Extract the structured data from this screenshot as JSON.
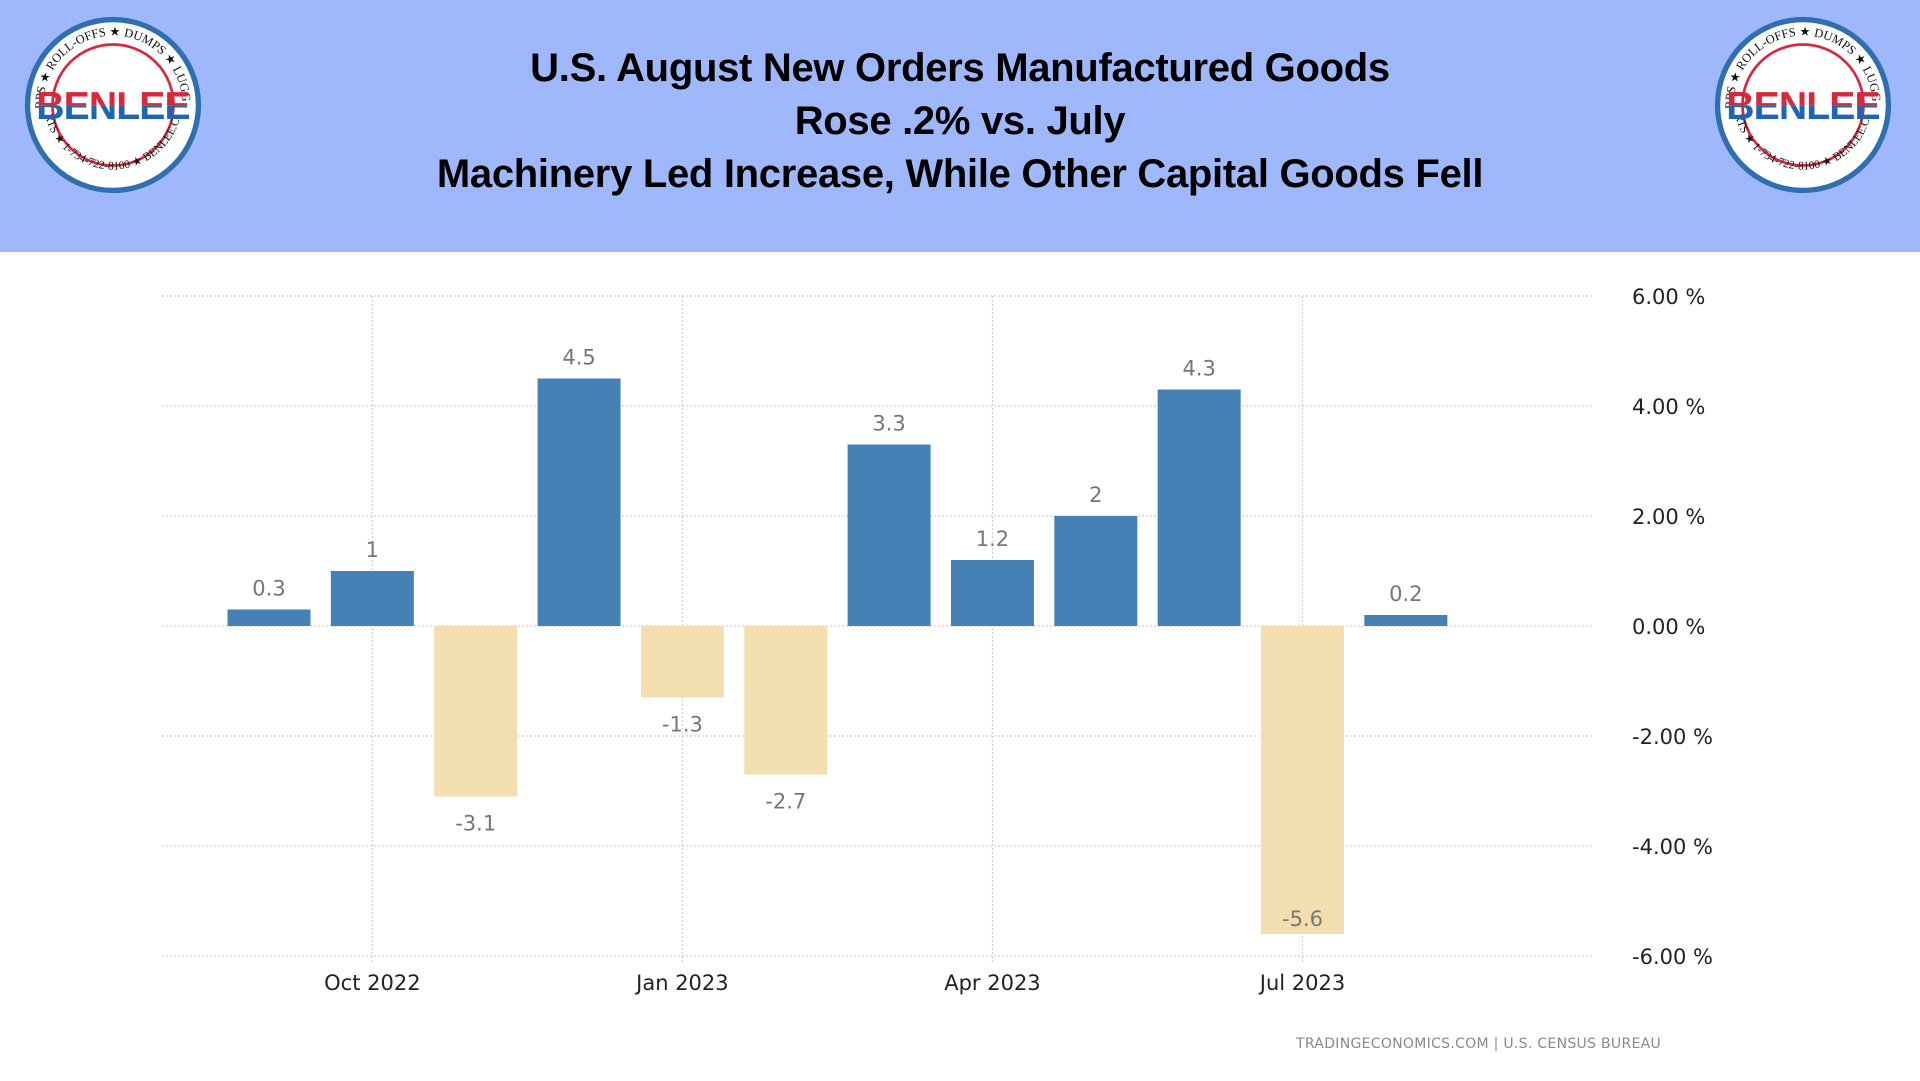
{
  "header": {
    "title_lines": [
      "U.S. August New Orders Manufactured Goods",
      "Rose .2% vs. July",
      "Machinery Led Increase, While Other Capital Goods Fell"
    ],
    "logo": {
      "brand": "BENLEE",
      "ring_top": "TARPS ★ ROLL-OFFS ★ DUMPS ★ LUGGERS",
      "ring_bottom": "PARTS ★ 1-734-722-8100 ★ BENLEE.COM",
      "icon": "benlee-logo-icon"
    }
  },
  "source": "TRADINGECONOMICS.COM  |  U.S.  CENSUS BUREAU",
  "colors": {
    "header_bg": "#9fb7fb",
    "positive": "#4681b5",
    "negative": "#f3deb0",
    "grid": "#cfcfcf",
    "label": "#777777",
    "tick": "#222222"
  },
  "chart_data": {
    "type": "bar",
    "title": "U.S. August New Orders Manufactured Goods Rose .2% vs. July",
    "xlabel": "",
    "ylabel": "",
    "categories": [
      "Sep 2022",
      "Oct 2022",
      "Nov 2022",
      "Dec 2022",
      "Jan 2023",
      "Feb 2023",
      "Mar 2023",
      "Apr 2023",
      "May 2023",
      "Jun 2023",
      "Jul 2023",
      "Aug 2023"
    ],
    "values": [
      0.3,
      1,
      -3.1,
      4.5,
      -1.3,
      -2.7,
      3.3,
      1.2,
      2,
      4.3,
      -5.6,
      0.2
    ],
    "data_labels": [
      "0.3",
      "1",
      "-3.1",
      "4.5",
      "-1.3",
      "-2.7",
      "3.3",
      "1.2",
      "2",
      "4.3",
      "-5.6",
      "0.2"
    ],
    "x_tick_labels": [
      {
        "category": "Oct 2022",
        "label": "Oct 2022"
      },
      {
        "category": "Jan 2023",
        "label": "Jan 2023"
      },
      {
        "category": "Apr 2023",
        "label": "Apr 2023"
      },
      {
        "category": "Jul 2023",
        "label": "Jul 2023"
      }
    ],
    "y_ticks": [
      6,
      4,
      2,
      0,
      -2,
      -4,
      -6
    ],
    "y_tick_labels": [
      "6.00 %",
      "4.00 %",
      "2.00 %",
      "0.00 %",
      "-2.00 %",
      "-4.00 %",
      "-6.00 %"
    ],
    "ylim": [
      -6,
      6
    ],
    "y_axis_side": "right",
    "grid": true,
    "legend": "none"
  }
}
